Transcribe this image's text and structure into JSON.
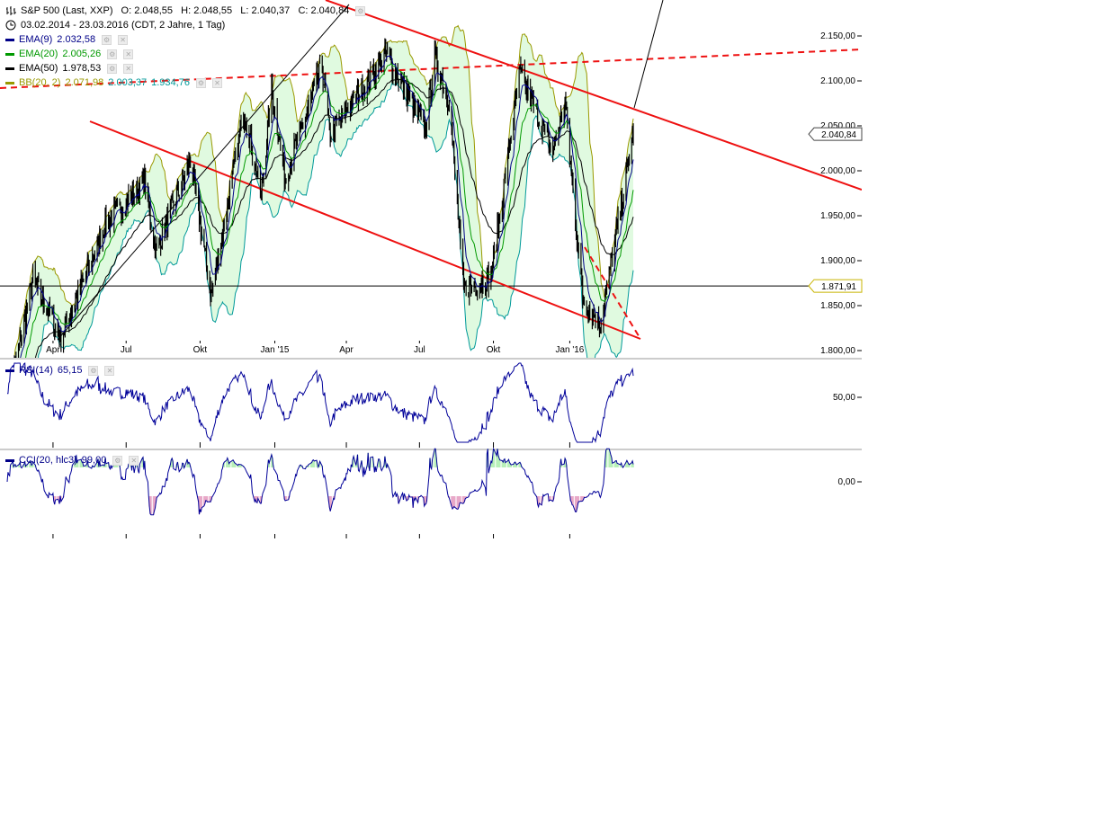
{
  "header": {
    "instrument": "S&P 500 (Last, XXP)",
    "ohlc": "O: 2.048,55   H: 2.048,55   L: 2.040,37   C: 2.040,84",
    "period": "03.02.2014 - 23.03.2016 (CDT, 2 Jahre, 1 Tag)"
  },
  "legend": [
    {
      "label": "EMA(9)",
      "value": "2.032,58",
      "color": "#000088"
    },
    {
      "label": "EMA(20)",
      "value": "2.005,26",
      "color": "#009900"
    },
    {
      "label": "EMA(50)",
      "value": "1.978,53",
      "color": "#000000"
    },
    {
      "label": "BB(20, 2)",
      "value": "2.071,98",
      "value2": "2.003,37",
      "value3": "1.934,76",
      "color": "#999900",
      "color2": "#009999"
    }
  ],
  "indicators": {
    "rsi_label": "RSI(14)",
    "rsi_value": "65,15",
    "cci_label": "CCI(20, hlc3)",
    "cci_value": "99,00"
  },
  "price_labels": {
    "last": "2.040,84",
    "hline": "1.871,91"
  },
  "colors": {
    "candle": "#000000",
    "ema9": "#000088",
    "ema20": "#009900",
    "ema50": "#000000",
    "bb_upper": "#999900",
    "bb_lower": "#009999",
    "bb_fill": "#e0fae0",
    "trend": "#ee1111",
    "rsi": "#000099",
    "cci": "#000099",
    "cci_pos_fill": "#b8f0b8",
    "cci_neg_fill": "#e8a8c8"
  },
  "chart_data": {
    "type": "line",
    "title": "S&P 500 (Last, XXP)",
    "x_range": [
      "2014-02-03",
      "2016-03-23"
    ],
    "x_ticks": [
      "Apr",
      "Jul",
      "Okt",
      "Jan '15",
      "Apr",
      "Jul",
      "Okt",
      "Jan '16"
    ],
    "y_ticks": [
      "2.150,00",
      "2.100,00",
      "2.050,00",
      "2.000,00",
      "1.950,00",
      "1.900,00",
      "1.850,00",
      "1.800,00"
    ],
    "y_tick_values": [
      2150,
      2100,
      2050,
      2000,
      1950,
      1900,
      1850,
      1800
    ],
    "ylim": [
      1800,
      2160
    ],
    "x_anchors": [
      {
        "date": "2014-02-03",
        "close": 1741
      },
      {
        "date": "2014-03-07",
        "close": 1878
      },
      {
        "date": "2014-04-11",
        "close": 1815
      },
      {
        "date": "2014-06-05",
        "close": 1940
      },
      {
        "date": "2014-07-24",
        "close": 1988
      },
      {
        "date": "2014-08-07",
        "close": 1910
      },
      {
        "date": "2014-09-19",
        "close": 2011
      },
      {
        "date": "2014-10-15",
        "close": 1862
      },
      {
        "date": "2014-11-25",
        "close": 2067
      },
      {
        "date": "2014-12-16",
        "close": 1972
      },
      {
        "date": "2014-12-29",
        "close": 2090
      },
      {
        "date": "2015-01-15",
        "close": 1992
      },
      {
        "date": "2015-03-02",
        "close": 2117
      },
      {
        "date": "2015-03-11",
        "close": 2040
      },
      {
        "date": "2015-05-21",
        "close": 2130
      },
      {
        "date": "2015-07-08",
        "close": 2046
      },
      {
        "date": "2015-07-20",
        "close": 2128
      },
      {
        "date": "2015-08-07",
        "close": 2077
      },
      {
        "date": "2015-08-25",
        "close": 1868
      },
      {
        "date": "2015-09-28",
        "close": 1881
      },
      {
        "date": "2015-11-03",
        "close": 2109
      },
      {
        "date": "2015-12-14",
        "close": 2021
      },
      {
        "date": "2015-12-29",
        "close": 2078
      },
      {
        "date": "2016-01-20",
        "close": 1859
      },
      {
        "date": "2016-02-11",
        "close": 1829
      },
      {
        "date": "2016-03-23",
        "close": 2041
      }
    ],
    "horizontal_line": 1871.91,
    "last_value": 2040.84,
    "rsi_ticks": [
      "50,00"
    ],
    "cci_ticks": [
      "0,00"
    ],
    "grid": false
  }
}
